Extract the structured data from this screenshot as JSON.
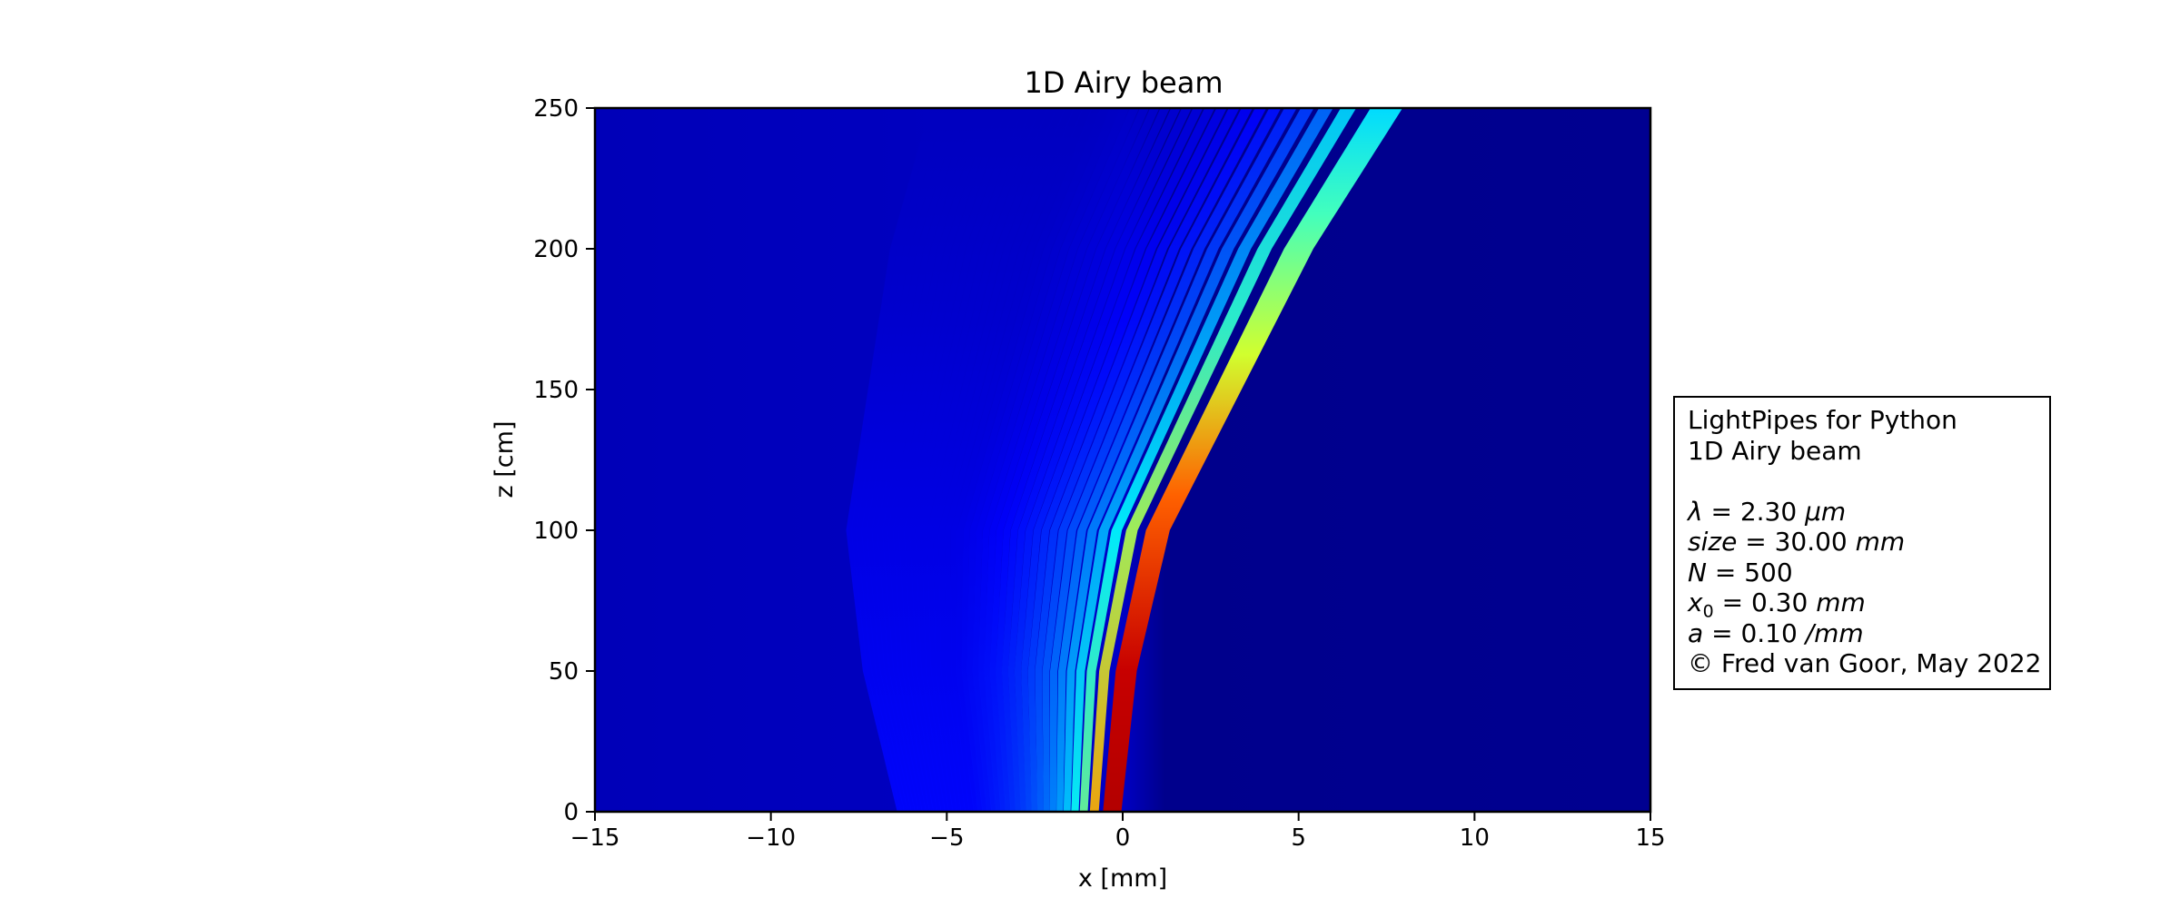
{
  "chart_data": {
    "type": "heatmap",
    "title": "1D Airy beam",
    "xlabel": "x [mm]",
    "ylabel": "z [cm]",
    "xlim": [
      -15,
      15
    ],
    "ylim": [
      0,
      250
    ],
    "x_ticks": [
      "−15",
      "−10",
      "−5",
      "0",
      "5",
      "10",
      "15"
    ],
    "x_tick_values": [
      -15,
      -10,
      -5,
      0,
      5,
      10,
      15
    ],
    "y_ticks": [
      "0",
      "50",
      "100",
      "150",
      "200",
      "250"
    ],
    "y_tick_values": [
      0,
      50,
      100,
      150,
      200,
      250
    ],
    "colormap": "jet",
    "main_lobe_path": [
      {
        "z": 0,
        "x": -0.3
      },
      {
        "z": 50,
        "x": 0.1
      },
      {
        "z": 100,
        "x": 1.0
      },
      {
        "z": 150,
        "x": 3.0
      },
      {
        "z": 200,
        "x": 5.0
      },
      {
        "z": 250,
        "x": 7.5
      }
    ],
    "grid": false,
    "legend": "none"
  },
  "info_box": {
    "line1": "LightPipes for Python",
    "line2": "1D Airy beam",
    "params": [
      {
        "sym": "λ",
        "sub": "",
        "val": "2.30",
        "unit": "μm"
      },
      {
        "sym": "size",
        "sub": "",
        "val": "30.00",
        "unit": "mm"
      },
      {
        "sym": "N",
        "sub": "",
        "val": "500",
        "unit": ""
      },
      {
        "sym": "x",
        "sub": "0",
        "val": "0.30",
        "unit": "mm"
      },
      {
        "sym": "a",
        "sub": "",
        "val": "0.10",
        "unit": "/mm"
      }
    ],
    "copyright": "© Fred van Goor, May 2022"
  }
}
